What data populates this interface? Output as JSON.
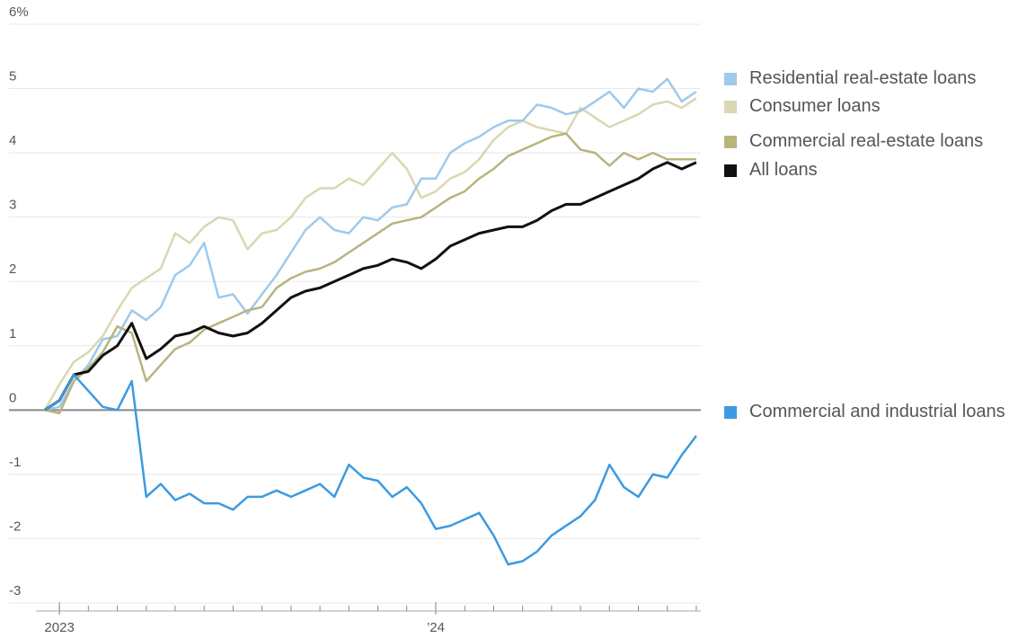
{
  "chart_data": {
    "type": "line",
    "categories": [
      null,
      "2023",
      null,
      null,
      null,
      null,
      null,
      null,
      null,
      null,
      null,
      null,
      null,
      null,
      null,
      null,
      null,
      null,
      null,
      null,
      null,
      null,
      null,
      null,
      null,
      null,
      null,
      "’24",
      null,
      null,
      null,
      null,
      null,
      null,
      null,
      null,
      null,
      null,
      null,
      null,
      null,
      null,
      null,
      null,
      null,
      null
    ],
    "ylim": [
      -3,
      6
    ],
    "yticks": [
      -3,
      -2,
      -1,
      0,
      1,
      2,
      3,
      4,
      5,
      {
        "value": 6,
        "label": "6%"
      }
    ],
    "grid": true,
    "series": [
      {
        "name": "Consumer loans",
        "color": "#dad7b3",
        "values": [
          0,
          0.4,
          0.75,
          0.9,
          1.15,
          1.55,
          1.9,
          2.05,
          2.2,
          2.75,
          2.6,
          2.85,
          3.0,
          2.95,
          2.5,
          2.75,
          2.8,
          3.0,
          3.3,
          3.45,
          3.45,
          3.6,
          3.5,
          3.75,
          4.0,
          3.75,
          3.3,
          3.4,
          3.6,
          3.7,
          3.9,
          4.2,
          4.4,
          4.5,
          4.4,
          4.35,
          4.3,
          4.7,
          4.55,
          4.4,
          4.5,
          4.6,
          4.75,
          4.8,
          4.7,
          4.85
        ]
      },
      {
        "name": "Residential real-estate loans",
        "color": "#9ecaec",
        "values": [
          0,
          0.05,
          0.45,
          0.7,
          1.1,
          1.15,
          1.55,
          1.4,
          1.6,
          2.1,
          2.25,
          2.6,
          1.75,
          1.8,
          1.5,
          1.8,
          2.1,
          2.45,
          2.8,
          3.0,
          2.8,
          2.75,
          3.0,
          2.95,
          3.15,
          3.2,
          3.6,
          3.6,
          4.0,
          4.15,
          4.25,
          4.4,
          4.5,
          4.5,
          4.75,
          4.7,
          4.6,
          4.65,
          4.8,
          4.95,
          4.7,
          5.0,
          4.95,
          5.15,
          4.8,
          4.95
        ]
      },
      {
        "name": "Commercial real-estate loans",
        "color": "#b9b47c",
        "values": [
          0,
          -0.05,
          0.45,
          0.65,
          0.9,
          1.3,
          1.2,
          0.45,
          0.7,
          0.95,
          1.05,
          1.25,
          1.35,
          1.45,
          1.55,
          1.6,
          1.9,
          2.05,
          2.15,
          2.2,
          2.3,
          2.45,
          2.6,
          2.75,
          2.9,
          2.95,
          3.0,
          3.15,
          3.3,
          3.4,
          3.6,
          3.75,
          3.95,
          4.05,
          4.15,
          4.25,
          4.3,
          4.05,
          4.0,
          3.8,
          4.0,
          3.9,
          4.0,
          3.9,
          3.9,
          3.9
        ]
      },
      {
        "name": "All loans",
        "color": "#111111",
        "values": [
          0,
          0.15,
          0.55,
          0.6,
          0.85,
          1.0,
          1.35,
          0.8,
          0.95,
          1.15,
          1.2,
          1.3,
          1.2,
          1.15,
          1.2,
          1.35,
          1.55,
          1.75,
          1.85,
          1.9,
          2.0,
          2.1,
          2.2,
          2.25,
          2.35,
          2.3,
          2.2,
          2.35,
          2.55,
          2.65,
          2.75,
          2.8,
          2.85,
          2.85,
          2.95,
          3.1,
          3.2,
          3.2,
          3.3,
          3.4,
          3.5,
          3.6,
          3.75,
          3.85,
          3.75,
          3.85
        ]
      },
      {
        "name": "Commercial and industrial loans",
        "color": "#3d9ae0",
        "values": [
          0,
          0.15,
          0.55,
          0.3,
          0.05,
          0.0,
          0.45,
          -1.35,
          -1.15,
          -1.4,
          -1.3,
          -1.45,
          -1.45,
          -1.55,
          -1.35,
          -1.35,
          -1.25,
          -1.35,
          -1.25,
          -1.15,
          -1.35,
          -0.85,
          -1.05,
          -1.1,
          -1.35,
          -1.2,
          -1.45,
          -1.85,
          -1.8,
          -1.7,
          -1.6,
          -1.95,
          -2.4,
          -2.35,
          -2.2,
          -1.95,
          -1.8,
          -1.65,
          -1.4,
          -0.85,
          -1.2,
          -1.35,
          -1.0,
          -1.05,
          -0.7,
          -0.4
        ]
      }
    ]
  }
}
